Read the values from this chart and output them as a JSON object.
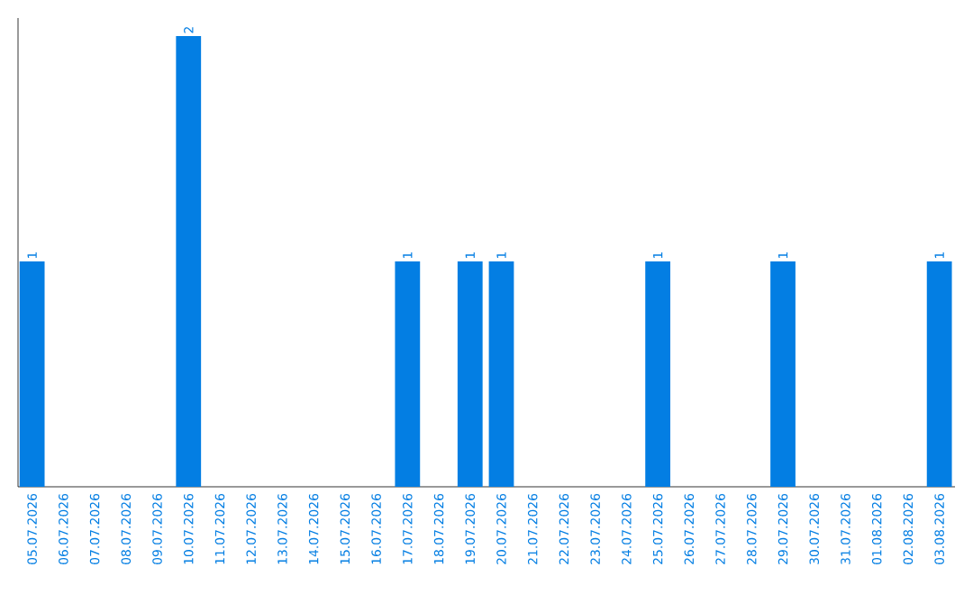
{
  "chart_data": {
    "type": "bar",
    "categories": [
      "05.07.2026",
      "06.07.2026",
      "07.07.2026",
      "08.07.2026",
      "09.07.2026",
      "10.07.2026",
      "11.07.2026",
      "12.07.2026",
      "13.07.2026",
      "14.07.2026",
      "15.07.2026",
      "16.07.2026",
      "17.07.2026",
      "18.07.2026",
      "19.07.2026",
      "20.07.2026",
      "21.07.2026",
      "22.07.2026",
      "23.07.2026",
      "24.07.2026",
      "25.07.2026",
      "26.07.2026",
      "27.07.2026",
      "28.07.2026",
      "29.07.2026",
      "30.07.2026",
      "31.07.2026",
      "01.08.2026",
      "02.08.2026",
      "03.08.2026"
    ],
    "values": [
      1,
      0,
      0,
      0,
      0,
      2,
      0,
      0,
      0,
      0,
      0,
      0,
      1,
      0,
      1,
      1,
      0,
      0,
      0,
      0,
      1,
      0,
      0,
      0,
      1,
      0,
      0,
      0,
      0,
      1
    ],
    "value_labels": [
      "1",
      null,
      null,
      null,
      null,
      "2",
      null,
      null,
      null,
      null,
      null,
      null,
      "1",
      null,
      "1",
      "1",
      null,
      null,
      null,
      null,
      "1",
      null,
      null,
      null,
      "1",
      null,
      null,
      null,
      null,
      "1"
    ],
    "color": "#037ee3",
    "ylim": [
      0,
      2
    ],
    "tick_labels": "x"
  }
}
